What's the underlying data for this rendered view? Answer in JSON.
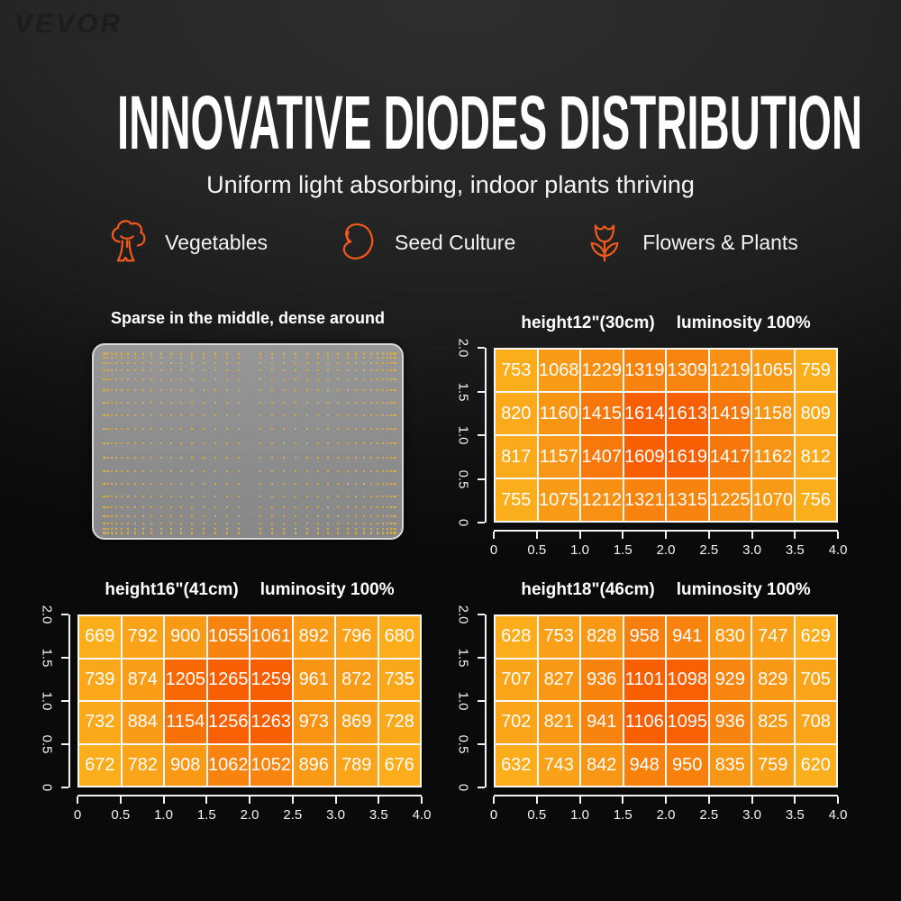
{
  "page": {
    "logo": "VEVOR",
    "title": "INNOVATIVE DIODES DISTRIBUTION",
    "subtitle": "Uniform light absorbing, indoor plants thriving"
  },
  "features": [
    {
      "icon": "broccoli-icon",
      "label": "Vegetables"
    },
    {
      "icon": "seed-icon",
      "label": "Seed Culture"
    },
    {
      "icon": "flower-icon",
      "label": "Flowers & Plants"
    }
  ],
  "diode_panel": {
    "title": "Sparse in the middle, dense around",
    "dot_color": "#d8a83b",
    "dot_color_alt": "#c3b07a",
    "panel_color": "#8e8e8e"
  },
  "colors": {
    "accent_orange": "#f4591c",
    "heat_low": "#fbae1c",
    "heat_mid": "#f89414",
    "heat_high": "#f85e02",
    "axis": "#f2f2f2",
    "cell_text": "#ffffff"
  },
  "chart_data": [
    {
      "type": "heatmap",
      "id": "h12",
      "height_label": "height12\"(30cm)",
      "luminosity_label": "luminosity 100%",
      "x_tick_labels": [
        "0",
        "0.5",
        "1.0",
        "1.5",
        "2.0",
        "2.5",
        "3.0",
        "3.5",
        "4.0"
      ],
      "y_tick_labels": [
        "2.0",
        "1.5",
        "1.0",
        "0.5",
        "0"
      ],
      "xlim": [
        0,
        4.0
      ],
      "ylim": [
        0,
        2.0
      ],
      "values": [
        [
          753,
          1068,
          1229,
          1319,
          1309,
          1219,
          1065,
          759
        ],
        [
          820,
          1160,
          1415,
          1614,
          1613,
          1419,
          1158,
          809
        ],
        [
          817,
          1157,
          1407,
          1609,
          1619,
          1417,
          1162,
          812
        ],
        [
          755,
          1075,
          1212,
          1321,
          1315,
          1225,
          1070,
          756
        ]
      ]
    },
    {
      "type": "heatmap",
      "id": "h16",
      "height_label": "height16\"(41cm)",
      "luminosity_label": "luminosity 100%",
      "x_tick_labels": [
        "0",
        "0.5",
        "1.0",
        "1.5",
        "2.0",
        "2.5",
        "3.0",
        "3.5",
        "4.0"
      ],
      "y_tick_labels": [
        "2.0",
        "1.5",
        "1.0",
        "0.5",
        "0"
      ],
      "xlim": [
        0,
        4.0
      ],
      "ylim": [
        0,
        2.0
      ],
      "values": [
        [
          669,
          792,
          900,
          1055,
          1061,
          892,
          796,
          680
        ],
        [
          739,
          874,
          1205,
          1265,
          1259,
          961,
          872,
          735
        ],
        [
          732,
          884,
          1154,
          1256,
          1263,
          973,
          869,
          728
        ],
        [
          672,
          782,
          908,
          1062,
          1052,
          896,
          789,
          676
        ]
      ]
    },
    {
      "type": "heatmap",
      "id": "h18",
      "height_label": "height18\"(46cm)",
      "luminosity_label": "luminosity 100%",
      "x_tick_labels": [
        "0",
        "0.5",
        "1.0",
        "1.5",
        "2.0",
        "2.5",
        "3.0",
        "3.5",
        "4.0"
      ],
      "y_tick_labels": [
        "2.0",
        "1.5",
        "1.0",
        "0.5",
        "0"
      ],
      "xlim": [
        0,
        4.0
      ],
      "ylim": [
        0,
        2.0
      ],
      "values": [
        [
          628,
          753,
          828,
          958,
          941,
          830,
          747,
          629
        ],
        [
          707,
          827,
          936,
          1101,
          1098,
          929,
          829,
          705
        ],
        [
          702,
          821,
          941,
          1106,
          1095,
          936,
          825,
          708
        ],
        [
          632,
          743,
          842,
          948,
          950,
          835,
          759,
          620
        ]
      ]
    }
  ]
}
